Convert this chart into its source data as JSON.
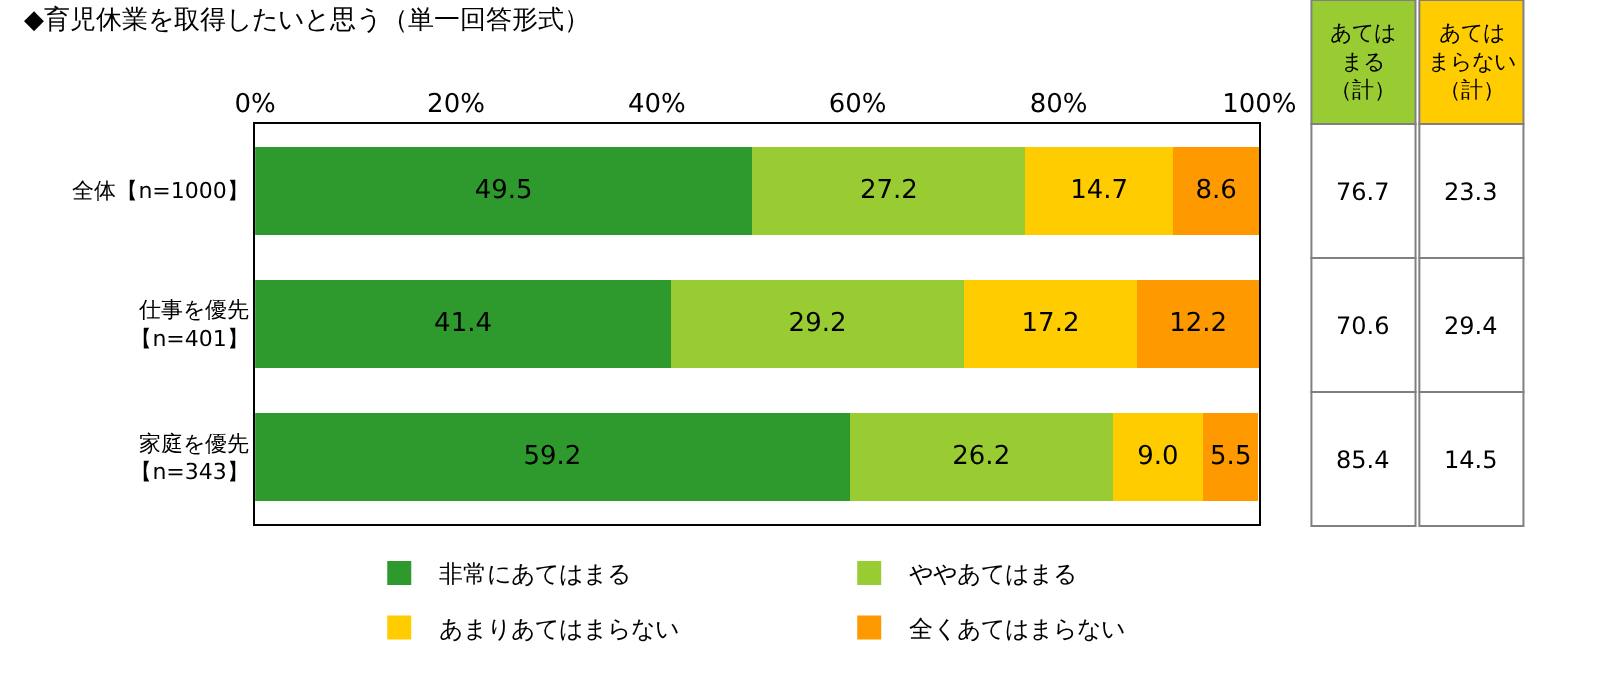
{
  "chart_data": [
    {
      "type": "bar",
      "orientation": "horizontal",
      "stacked": true,
      "title": "◆育児休業を取得したいと思う（単一回答形式）",
      "categories": [
        "全体【n=1000】",
        "仕事を優先【n=401】",
        "家庭を優先【n=343】"
      ],
      "series": [
        {
          "name": "非常にあてはまる",
          "color": "#2e9a2e",
          "values": [
            49.5,
            41.4,
            59.2
          ]
        },
        {
          "name": "ややあてはまる",
          "color": "#99cc33",
          "values": [
            27.2,
            29.2,
            26.2
          ]
        },
        {
          "name": "あまりあてはまらない",
          "color": "#ffcc00",
          "values": [
            14.7,
            17.2,
            9.0
          ],
          "value_labels": [
            "14.7",
            "17.2",
            "9.0"
          ]
        },
        {
          "name": "全くあてはまらない",
          "color": "#ff9900",
          "values": [
            8.6,
            12.2,
            5.5
          ]
        }
      ],
      "xlim": [
        0,
        100
      ],
      "xticks": [
        {
          "value": 0,
          "label": "0%"
        },
        {
          "value": 20,
          "label": "20%"
        },
        {
          "value": 40,
          "label": "40%"
        },
        {
          "value": 60,
          "label": "60%"
        },
        {
          "value": 80,
          "label": "80%"
        },
        {
          "value": 100,
          "label": "100%"
        }
      ],
      "data_labels": true,
      "legend": "bottom",
      "grid": false
    },
    {
      "type": "other",
      "annotations": [
        "あてはまる（計）",
        "あてはまらない（計）",
        "76.7",
        "23.3",
        "70.6",
        "29.4",
        "85.4",
        "14.5"
      ]
    }
  ]
}
